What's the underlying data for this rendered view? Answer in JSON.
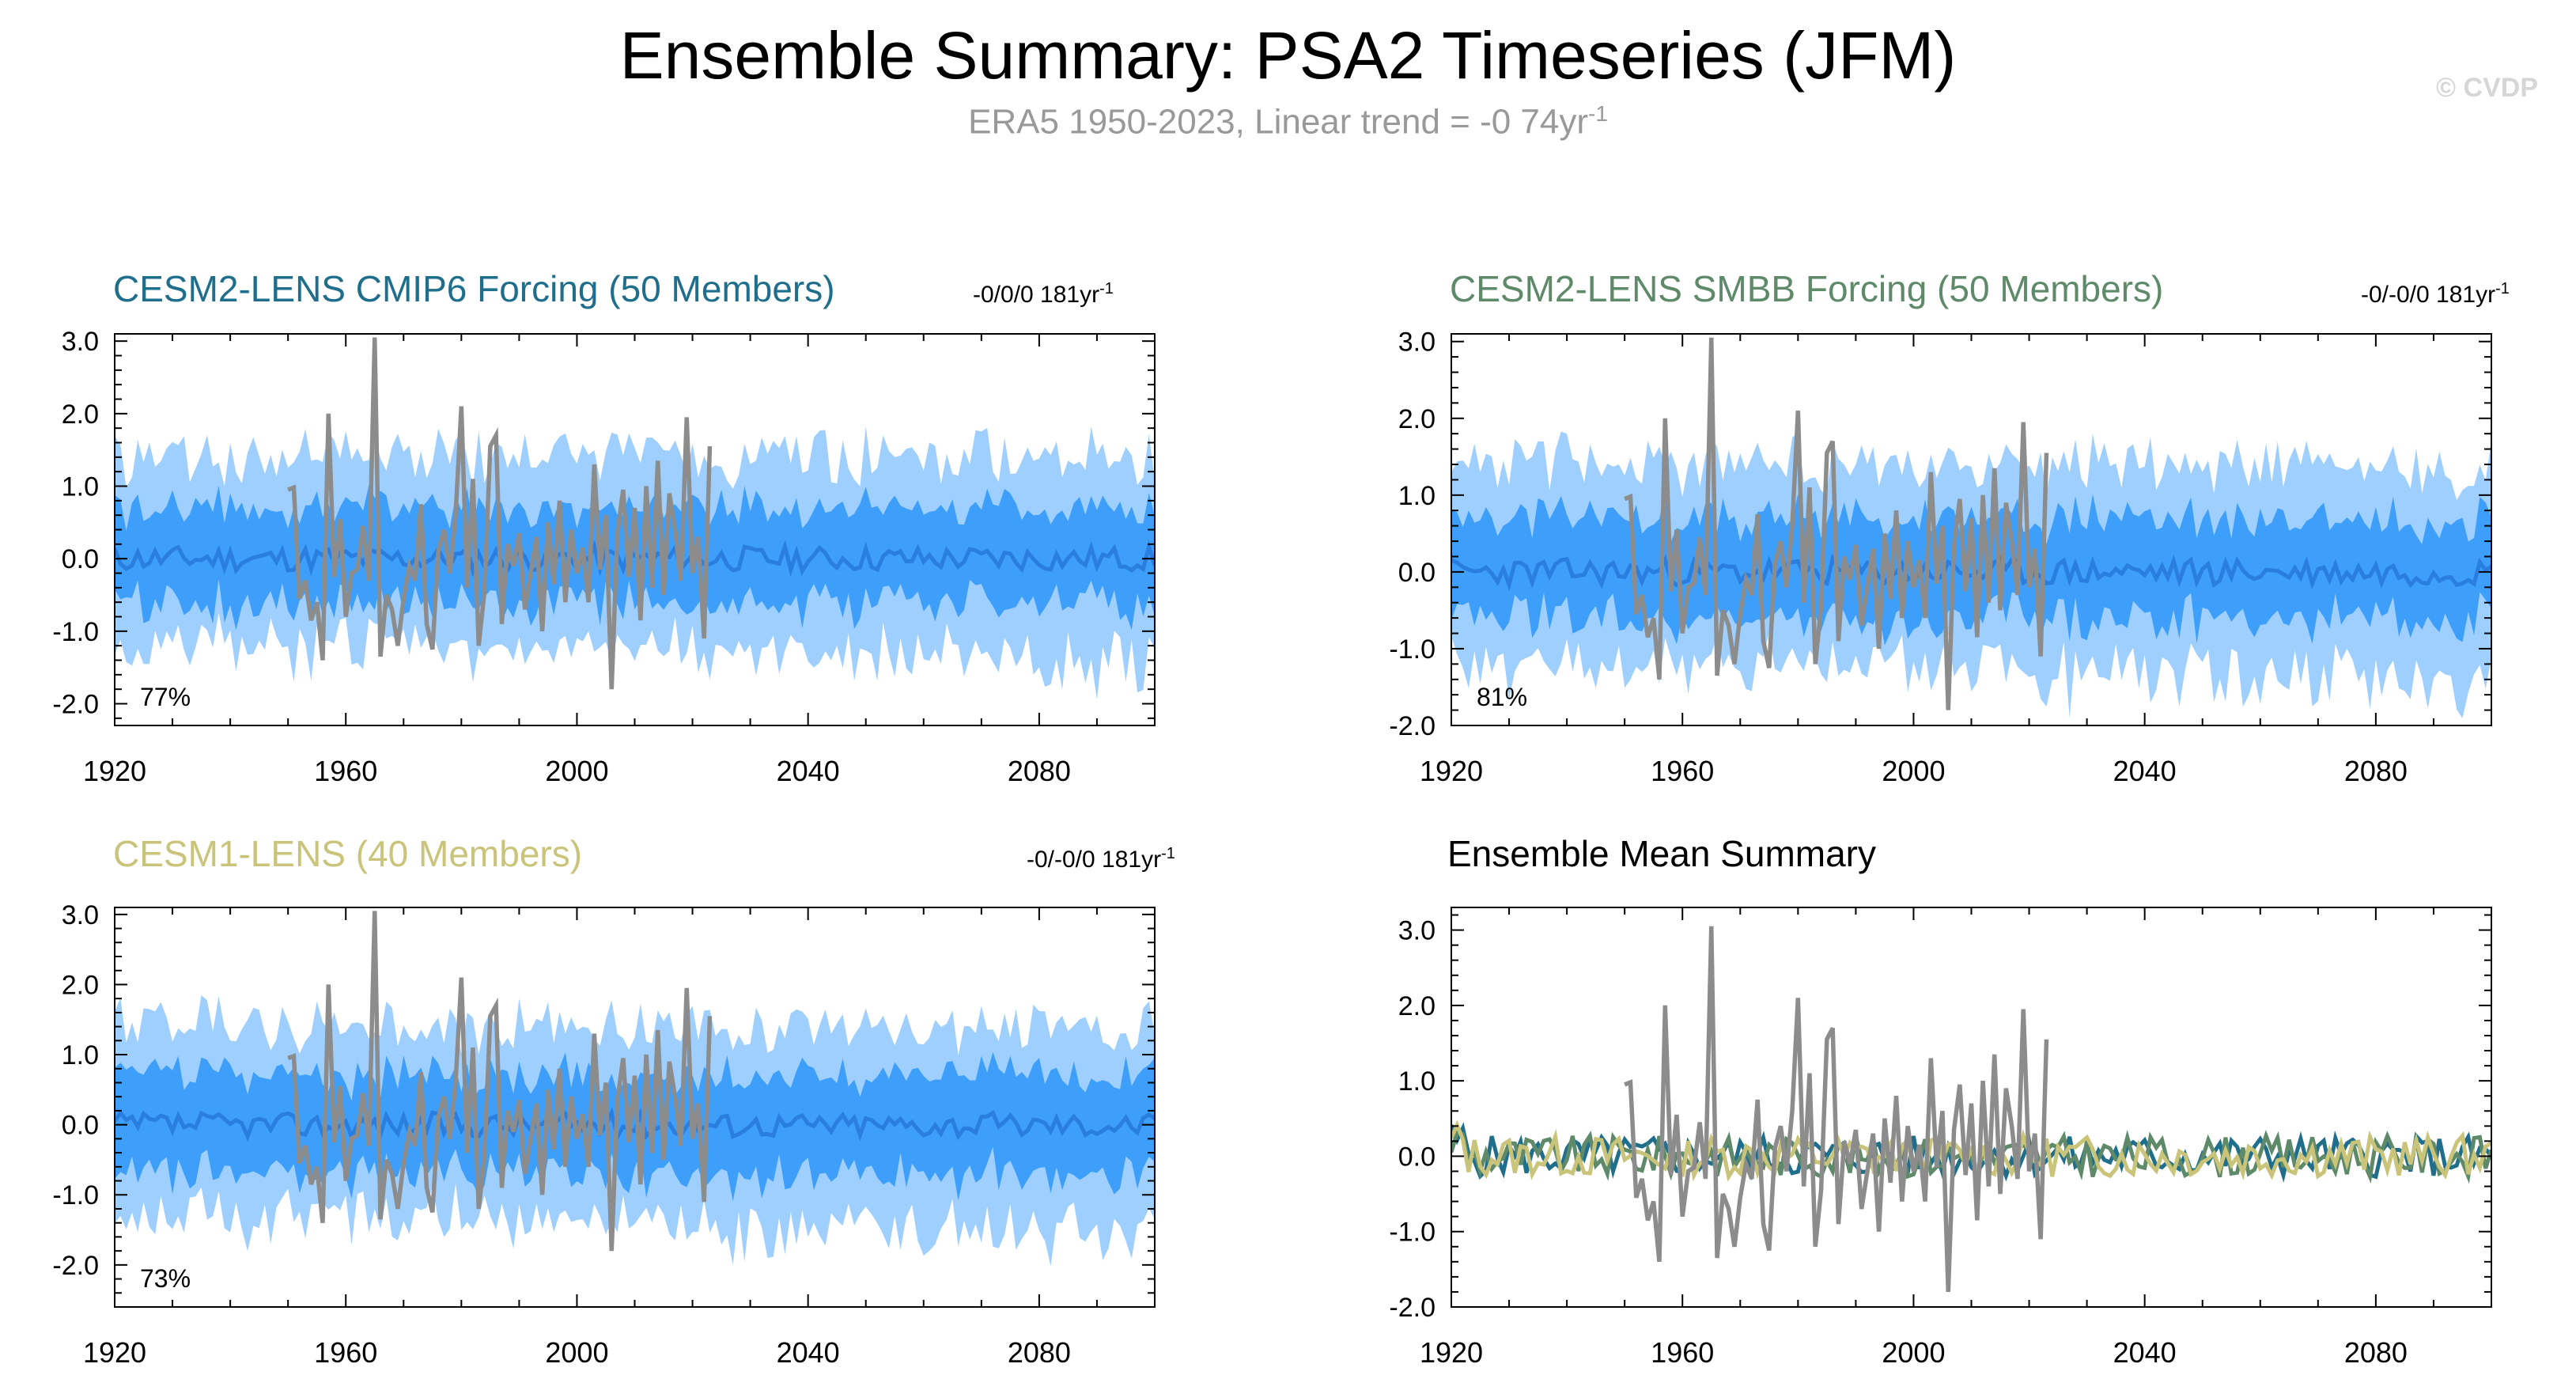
{
  "figure": {
    "title": "Ensemble Summary: PSA2 Timeseries (JFM)",
    "subtitle": "ERA5 1950-2023, Linear trend = -0 74yr",
    "subtitle_sup": "-1",
    "watermark": "© CVDP"
  },
  "colors": {
    "obs": "#8c8c8c",
    "band_outer": "#9fcfff",
    "band_inner": "#3d9ffa",
    "ens_mean_line": "#2a7ee0",
    "cmip6": "#1f6e8c",
    "smbb": "#5e8a6a",
    "cesm1": "#c9c47a"
  },
  "chart_data": [
    {
      "type": "area",
      "title": "CESM2-LENS CMIP6 Forcing (50 Members)",
      "title_color": "#1f6e8c",
      "trend_label": "-0/0/0 181yr",
      "trend_sup": "-1",
      "percent_label": "77%",
      "xlim": [
        1920,
        2100
      ],
      "ylim": [
        -2.3,
        3.1
      ],
      "xticks": [
        "1920",
        "1960",
        "2000",
        "2040",
        "2080"
      ],
      "yticks": [
        "3.0",
        "2.0",
        "1.0",
        "0.0",
        "-1.0",
        "-2.0"
      ],
      "band_outer": [
        -1.2,
        1.4
      ],
      "band_inner": [
        -0.6,
        0.7
      ],
      "seed": 11
    },
    {
      "type": "area",
      "title": "CESM2-LENS SMBB Forcing (50 Members)",
      "title_color": "#5e8a6a",
      "trend_label": "-0/-0/0 181yr",
      "trend_sup": "-1",
      "percent_label": "81%",
      "xlim": [
        1920,
        2100
      ],
      "ylim": [
        -2.0,
        3.1
      ],
      "xticks": [
        "1920",
        "1960",
        "2000",
        "2040",
        "2080"
      ],
      "yticks": [
        "3.0",
        "2.0",
        "1.0",
        "0.0",
        "-1.0",
        "-2.0"
      ],
      "band_outer": [
        -1.2,
        1.4
      ],
      "band_inner": [
        -0.6,
        0.7
      ],
      "seed": 23
    },
    {
      "type": "area",
      "title": "CESM1-LENS (40 Members)",
      "title_color": "#c9c47a",
      "trend_label": "-0/-0/0 181yr",
      "trend_sup": "-1",
      "percent_label": "73%",
      "xlim": [
        1920,
        2100
      ],
      "ylim": [
        -2.6,
        3.1
      ],
      "xticks": [
        "1920",
        "1960",
        "2000",
        "2040",
        "2080"
      ],
      "yticks": [
        "3.0",
        "2.0",
        "1.0",
        "0.0",
        "-1.0",
        "-2.0"
      ],
      "band_outer": [
        -1.3,
        1.4
      ],
      "band_inner": [
        -0.7,
        0.7
      ],
      "seed": 37
    },
    {
      "type": "line",
      "title": "Ensemble Mean Summary",
      "title_color": "#000000",
      "xlim": [
        1920,
        2100
      ],
      "ylim": [
        -2.0,
        3.3
      ],
      "xticks": [
        "1920",
        "1960",
        "2000",
        "2040",
        "2080"
      ],
      "yticks": [
        "3.0",
        "2.0",
        "1.0",
        "0.0",
        "-1.0",
        "-2.0"
      ],
      "series": [
        {
          "color_key": "cmip6",
          "seed": 5
        },
        {
          "color_key": "smbb",
          "seed": 9
        },
        {
          "color_key": "cesm1",
          "seed": 13
        }
      ]
    }
  ],
  "obs_series": {
    "x_start": 1950,
    "values": [
      0.95,
      0.98,
      -0.55,
      -0.3,
      -0.85,
      -0.6,
      -1.4,
      2.0,
      -0.25,
      0.55,
      -0.8,
      -0.2,
      -0.15,
      0.45,
      -0.3,
      3.05,
      -1.35,
      -0.5,
      -0.7,
      -1.2,
      -0.55,
      -0.1,
      -0.3,
      0.75,
      -0.9,
      -1.25,
      0.1,
      0.4,
      -0.2,
      0.6,
      2.1,
      -0.4,
      1.1,
      -1.2,
      -0.45,
      1.55,
      1.7,
      -0.9,
      0.2,
      -0.1,
      0.35,
      -0.7,
      -0.2,
      0.3,
      -1.0,
      0.5,
      -0.35,
      0.8,
      -0.6,
      0.4,
      -0.2,
      0.15,
      -0.6,
      1.3,
      -0.15,
      0.6,
      -1.8,
      0.35,
      0.95,
      -0.25,
      0.7,
      -0.85,
      1.0,
      -0.4,
      1.35,
      -0.5,
      0.9,
      0.4,
      -0.3,
      1.95,
      -0.2,
      0.3,
      -1.1,
      1.55
    ]
  }
}
